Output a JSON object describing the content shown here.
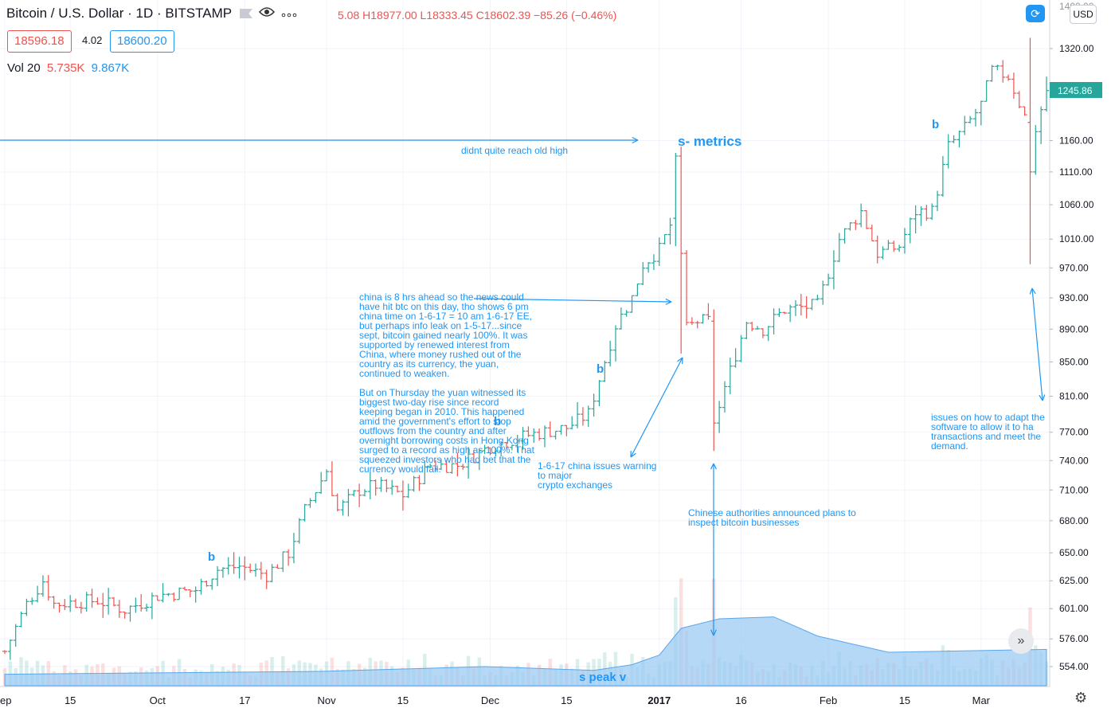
{
  "header": {
    "symbol": "Bitcoin / U.S. Dollar · 1D · BITSTAMP",
    "ohlc": "5.08 H18977.00 L18333.45 C18602.39 −85.26 (−0.46%)",
    "bid": "18596.18",
    "spread": "4.02",
    "ask": "18600.20",
    "vol_label": "Vol 20",
    "vol_value_1": "5.735K",
    "vol_value_2": "9.867K",
    "currency_button": "USD",
    "refresh_icon": "refresh-icon",
    "eye_icon": "eye-icon",
    "more_icon": "more-icon"
  },
  "colors": {
    "up": "#26a69a",
    "down": "#ef5350",
    "annotation": "#2196f3",
    "volume_ma": "#7fbff2"
  },
  "chart_data": {
    "type": "ohlc",
    "x_unit": "date",
    "x_range": [
      "2016-09-03",
      "2017-03-13"
    ],
    "y_axis": {
      "side": "right",
      "scale": "log",
      "ticks": [
        554,
        576,
        601,
        625,
        650,
        680,
        710,
        740,
        770,
        810,
        850,
        890,
        930,
        970,
        1010,
        1060,
        1110,
        1160,
        1320
      ],
      "tick_labels": [
        "554.00",
        "576.00",
        "601.00",
        "625.00",
        "650.00",
        "680.00",
        "710.00",
        "740.00",
        "770.00",
        "810.00",
        "850.00",
        "890.00",
        "930.00",
        "970.00",
        "1010.00",
        "1060.00",
        "1110.00",
        "1160.00",
        "1320.00"
      ],
      "last_price_label": "1245.86",
      "top_partial_label": "1400.00"
    },
    "x_axis": {
      "ticks": [
        "2016-09-03",
        "2016-09-15",
        "2016-10-01",
        "2016-10-17",
        "2016-11-01",
        "2016-11-15",
        "2016-12-01",
        "2016-12-15",
        "2017-01-01",
        "2017-01-16",
        "2017-02-01",
        "2017-02-15",
        "2017-03-01"
      ],
      "tick_labels": [
        "ep",
        "15",
        "Oct",
        "17",
        "Nov",
        "15",
        "Dec",
        "15",
        "2017",
        "16",
        "Feb",
        "15",
        "Mar"
      ]
    },
    "anchors": [
      [
        "2016-09-03",
        566
      ],
      [
        "2016-09-07",
        605
      ],
      [
        "2016-09-10",
        625
      ],
      [
        "2016-09-12",
        605
      ],
      [
        "2016-09-20",
        608
      ],
      [
        "2016-09-25",
        600
      ],
      [
        "2016-10-01",
        612
      ],
      [
        "2016-10-08",
        617
      ],
      [
        "2016-10-12",
        635
      ],
      [
        "2016-10-16",
        638
      ],
      [
        "2016-10-21",
        630
      ],
      [
        "2016-10-25",
        650
      ],
      [
        "2016-10-28",
        690
      ],
      [
        "2016-11-01",
        730
      ],
      [
        "2016-11-03",
        690
      ],
      [
        "2016-11-07",
        710
      ],
      [
        "2016-11-10",
        715
      ],
      [
        "2016-11-15",
        705
      ],
      [
        "2016-11-20",
        735
      ],
      [
        "2016-11-25",
        735
      ],
      [
        "2016-12-01",
        755
      ],
      [
        "2016-12-08",
        767
      ],
      [
        "2016-12-15",
        775
      ],
      [
        "2016-12-19",
        790
      ],
      [
        "2016-12-21",
        830
      ],
      [
        "2016-12-24",
        895
      ],
      [
        "2016-12-27",
        930
      ],
      [
        "2016-12-29",
        975
      ],
      [
        "2017-01-01",
        995
      ],
      [
        "2017-01-03",
        1030
      ],
      [
        "2017-01-04",
        1130
      ],
      [
        "2017-01-05",
        1000
      ],
      [
        "2017-01-06",
        890
      ],
      [
        "2017-01-08",
        900
      ],
      [
        "2017-01-10",
        900
      ],
      [
        "2017-01-11",
        780
      ],
      [
        "2017-01-13",
        820
      ],
      [
        "2017-01-17",
        900
      ],
      [
        "2017-01-20",
        890
      ],
      [
        "2017-01-24",
        915
      ],
      [
        "2017-01-30",
        920
      ],
      [
        "2017-02-03",
        1010
      ],
      [
        "2017-02-07",
        1050
      ],
      [
        "2017-02-10",
        990
      ],
      [
        "2017-02-14",
        1000
      ],
      [
        "2017-02-17",
        1050
      ],
      [
        "2017-02-20",
        1050
      ],
      [
        "2017-02-23",
        1150
      ],
      [
        "2017-02-26",
        1180
      ],
      [
        "2017-03-01",
        1220
      ],
      [
        "2017-03-03",
        1280
      ],
      [
        "2017-03-06",
        1270
      ],
      [
        "2017-03-09",
        1200
      ],
      [
        "2017-03-10",
        1110
      ],
      [
        "2017-03-11",
        1180
      ],
      [
        "2017-03-13",
        1245
      ]
    ],
    "notable_bars": [
      {
        "date": "2017-01-04",
        "open": 1040,
        "high": 1140,
        "low": 1000,
        "close": 1135
      },
      {
        "date": "2017-01-05",
        "open": 1135,
        "high": 1150,
        "low": 860,
        "close": 990
      },
      {
        "date": "2017-01-11",
        "open": 900,
        "high": 915,
        "low": 750,
        "close": 780
      },
      {
        "date": "2017-03-10",
        "open": 1190,
        "high": 1340,
        "low": 975,
        "close": 1110
      }
    ],
    "volume_ma_anchors": [
      [
        "2016-09-03",
        1.2
      ],
      [
        "2016-10-31",
        1.5
      ],
      [
        "2016-11-30",
        2.0
      ],
      [
        "2016-12-20",
        1.6
      ],
      [
        "2016-12-27",
        2.2
      ],
      [
        "2017-01-01",
        3.2
      ],
      [
        "2017-01-05",
        6.0
      ],
      [
        "2017-01-12",
        7.0
      ],
      [
        "2017-01-22",
        7.2
      ],
      [
        "2017-01-30",
        5.2
      ],
      [
        "2017-02-12",
        3.5
      ],
      [
        "2017-03-13",
        3.8
      ]
    ]
  },
  "annotations": {
    "old_high": "didnt quite reach old high",
    "s_metrics": "s- metrics",
    "china_ahead": "china is 8 hrs ahead so the news could\nhave hit btc on this day, tho shows 6 pm\nchina time on 1-6-17 = 10 am 1-6-17 EE,\nbut perhaps info leak on 1-5-17...since\nsept, bitcoin gained nearly 100%. It was\nsupported by renewed interest from\nChina, where money rushed out of the\ncountry as its currency, the yuan,\ncontinued to weaken.\n\nBut on Thursday the yuan witnessed its\nbiggest two-day rise since record\nkeeping began in 2010. This happened\namid the government's effort to stop\noutflows from the country and after\novernight borrowing costs in Hong Kong\nsurged to a record as high as 100%. That\nsqueezed investors who had bet that the\ncurrency would fail.",
    "china_warning": "1-6-17 china issues warning\nto major\ncrypto exchanges",
    "chinese_authorities": "Chinese authorities announced plans to\ninspect bitcoin businesses",
    "issues_adapt": "issues on how to adapt the\nsoftware to allow it to ha\ntransactions and meet the\ndemand.",
    "s_peak": "s peak v",
    "b": "b"
  }
}
